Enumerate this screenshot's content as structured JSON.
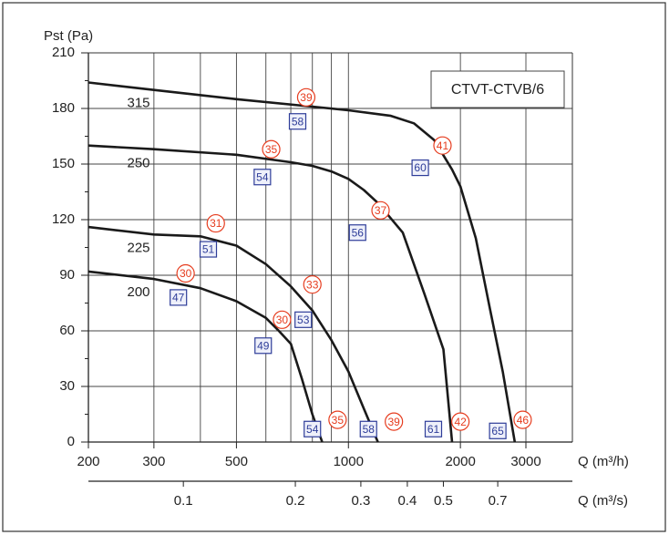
{
  "chart_data": {
    "type": "line",
    "ylabel": "Pst (Pa)",
    "xlabel": "Q (m³/h)",
    "x2label": "Q (m³/s)",
    "box_label": "CTVT-CTVB/6",
    "xscale": "log",
    "xlim": [
      200,
      4000
    ],
    "xticks": [
      200,
      300,
      500,
      1000,
      2000,
      3000
    ],
    "xgrid": [
      400,
      600,
      700,
      800,
      900
    ],
    "x2lim": [
      0.05556,
      1.1111
    ],
    "x2ticks": [
      0.1,
      0.2,
      0.3,
      0.4,
      0.5,
      0.7
    ],
    "ylim": [
      0,
      210
    ],
    "yticks": [
      0,
      30,
      60,
      90,
      120,
      150,
      180,
      210
    ],
    "yminor": [
      15,
      45,
      75,
      105,
      135,
      165,
      195
    ],
    "grid": true,
    "series": [
      {
        "name": "315",
        "color": "#1a1a1a",
        "x": [
          200,
          300,
          500,
          800,
          1000,
          1300,
          1500,
          1700,
          1900,
          2000,
          2200,
          2400,
          2600,
          2800
        ],
        "values": [
          194,
          190,
          185,
          181,
          179,
          176,
          172,
          163,
          147,
          138,
          110,
          72,
          38,
          0
        ]
      },
      {
        "name": "250",
        "color": "#1a1a1a",
        "x": [
          200,
          300,
          500,
          700,
          800,
          900,
          1000,
          1100,
          1200,
          1400,
          1600,
          1800,
          1900
        ],
        "values": [
          160,
          158,
          155,
          151,
          149,
          146,
          142,
          136,
          129,
          113,
          80,
          50,
          0
        ]
      },
      {
        "name": "225",
        "color": "#1a1a1a",
        "x": [
          200,
          300,
          400,
          500,
          600,
          700,
          800,
          900,
          1000,
          1100,
          1200
        ],
        "values": [
          116,
          112,
          111,
          106,
          96,
          84,
          71,
          55,
          38,
          18,
          0
        ]
      },
      {
        "name": "200",
        "color": "#1a1a1a",
        "x": [
          200,
          300,
          400,
          500,
          600,
          650,
          700,
          750,
          800,
          850
        ],
        "values": [
          92,
          88,
          83,
          76,
          67,
          60,
          53,
          34,
          15,
          0
        ]
      }
    ],
    "circle_color": "#e63c1e",
    "box_color": "#2e3d99",
    "annotations": [
      {
        "text": "39",
        "style": "circle",
        "x": 770,
        "y": 186
      },
      {
        "text": "41",
        "style": "circle",
        "x": 1790,
        "y": 160
      },
      {
        "text": "35",
        "style": "circle",
        "x": 620,
        "y": 158
      },
      {
        "text": "37",
        "style": "circle",
        "x": 1220,
        "y": 125
      },
      {
        "text": "31",
        "style": "circle",
        "x": 440,
        "y": 118
      },
      {
        "text": "33",
        "style": "circle",
        "x": 800,
        "y": 85
      },
      {
        "text": "30",
        "style": "circle",
        "x": 365,
        "y": 91
      },
      {
        "text": "30",
        "style": "circle",
        "x": 663,
        "y": 66
      },
      {
        "text": "35",
        "style": "circle",
        "x": 935,
        "y": 12
      },
      {
        "text": "39",
        "style": "circle",
        "x": 1325,
        "y": 11
      },
      {
        "text": "42",
        "style": "circle",
        "x": 2000,
        "y": 11
      },
      {
        "text": "46",
        "style": "circle",
        "x": 2940,
        "y": 12
      },
      {
        "text": "58",
        "style": "box",
        "x": 730,
        "y": 173
      },
      {
        "text": "60",
        "style": "box",
        "x": 1560,
        "y": 148
      },
      {
        "text": "54",
        "style": "box",
        "x": 587,
        "y": 143
      },
      {
        "text": "56",
        "style": "box",
        "x": 1058,
        "y": 113
      },
      {
        "text": "51",
        "style": "box",
        "x": 420,
        "y": 104
      },
      {
        "text": "47",
        "style": "box",
        "x": 349,
        "y": 78
      },
      {
        "text": "53",
        "style": "box",
        "x": 756,
        "y": 66
      },
      {
        "text": "49",
        "style": "box",
        "x": 590,
        "y": 52
      },
      {
        "text": "54",
        "style": "box",
        "x": 800,
        "y": 7
      },
      {
        "text": "58",
        "style": "box",
        "x": 1132,
        "y": 7
      },
      {
        "text": "61",
        "style": "box",
        "x": 1692,
        "y": 7
      },
      {
        "text": "65",
        "style": "box",
        "x": 2520,
        "y": 6
      }
    ]
  }
}
